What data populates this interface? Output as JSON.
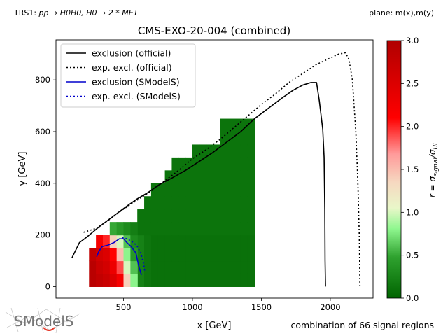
{
  "header": {
    "process_prefix": "TRS1: ",
    "process": "pp → H0H0, H0 → 2 * MET",
    "plane": "plane: m(x),m(y)"
  },
  "footer": {
    "combination": "combination of 66 signal regions",
    "logo_text": "SModelS"
  },
  "chart_data": {
    "type": "heatmap",
    "title": "CMS-EXO-20-004 (combined)",
    "xlabel": "x [GeV]",
    "ylabel": "y [GeV]",
    "xlim": [
      10,
      2310
    ],
    "ylim": [
      -45,
      955
    ],
    "xticks": [
      500,
      1000,
      1500,
      2000
    ],
    "yticks": [
      0,
      200,
      400,
      600,
      800
    ],
    "legend_position": "upper left",
    "colorbar": {
      "label": "r = σ_signal/σ_UL",
      "range": [
        0.0,
        3.0
      ],
      "ticks": [
        "0.0",
        "0.5",
        "1.0",
        "1.5",
        "2.0",
        "2.5",
        "3.0"
      ],
      "colors": [
        "#006400",
        "#8ff78f",
        "#f6eec8",
        "#ff0000",
        "#b00000"
      ]
    },
    "grid": {
      "x_step": 25,
      "y_step": 25,
      "fill_region": {
        "x_range": [
          600,
          1450
        ],
        "y_max_boundary": [
          [
            575,
            275
          ],
          [
            650,
            325
          ],
          [
            725,
            375
          ],
          [
            800,
            425
          ],
          [
            875,
            475
          ],
          [
            1025,
            550
          ],
          [
            1225,
            650
          ],
          [
            1450,
            650
          ]
        ]
      },
      "low_mass_r": {
        "x_centers": [
          275,
          325,
          375,
          425,
          475,
          525,
          575
        ],
        "y_rows": [
          {
            "y": 25,
            "r": [
              2.9,
              2.8,
              2.7,
              2.5,
              2.2,
              1.4,
              0.8
            ]
          },
          {
            "y": 75,
            "r": [
              2.9,
              2.7,
              2.6,
              2.3,
              1.9,
              1.0,
              0.6
            ]
          },
          {
            "y": 125,
            "r": [
              2.8,
              2.6,
              2.5,
              2.1,
              1.5,
              0.8,
              0.4
            ]
          },
          {
            "y": 175,
            "r": [
              null,
              2.2,
              2.0,
              1.4,
              1.0,
              0.6,
              0.3
            ]
          },
          {
            "y": 225,
            "r": [
              null,
              null,
              null,
              0.5,
              0.4,
              0.3,
              0.2
            ]
          }
        ]
      }
    },
    "series": [
      {
        "name": "exclusion (official)",
        "color": "#000000",
        "dash": "solid",
        "points": [
          [
            125,
            110
          ],
          [
            180,
            170
          ],
          [
            230,
            190
          ],
          [
            320,
            230
          ],
          [
            420,
            270
          ],
          [
            520,
            310
          ],
          [
            600,
            340
          ],
          [
            680,
            365
          ],
          [
            760,
            395
          ],
          [
            850,
            420
          ],
          [
            950,
            450
          ],
          [
            1050,
            485
          ],
          [
            1150,
            520
          ],
          [
            1250,
            560
          ],
          [
            1350,
            600
          ],
          [
            1450,
            650
          ],
          [
            1550,
            690
          ],
          [
            1650,
            730
          ],
          [
            1730,
            760
          ],
          [
            1800,
            780
          ],
          [
            1860,
            790
          ],
          [
            1900,
            790
          ],
          [
            1920,
            720
          ],
          [
            1945,
            610
          ],
          [
            1955,
            500
          ],
          [
            1960,
            300
          ],
          [
            1962,
            100
          ],
          [
            1965,
            0
          ]
        ]
      },
      {
        "name": "exp. excl. (official)",
        "color": "#000000",
        "dash": "dotted",
        "points": [
          [
            210,
            210
          ],
          [
            300,
            225
          ],
          [
            400,
            260
          ],
          [
            500,
            300
          ],
          [
            600,
            335
          ],
          [
            700,
            370
          ],
          [
            800,
            410
          ],
          [
            900,
            450
          ],
          [
            1000,
            495
          ],
          [
            1100,
            530
          ],
          [
            1200,
            570
          ],
          [
            1300,
            615
          ],
          [
            1400,
            660
          ],
          [
            1500,
            705
          ],
          [
            1600,
            745
          ],
          [
            1700,
            790
          ],
          [
            1800,
            825
          ],
          [
            1900,
            860
          ],
          [
            2000,
            885
          ],
          [
            2060,
            900
          ],
          [
            2110,
            905
          ],
          [
            2135,
            880
          ],
          [
            2160,
            800
          ],
          [
            2185,
            600
          ],
          [
            2200,
            400
          ],
          [
            2210,
            200
          ],
          [
            2215,
            0
          ]
        ]
      },
      {
        "name": "exclusion (SModelS)",
        "color": "#0000cc",
        "dash": "solid",
        "points": [
          [
            305,
            115
          ],
          [
            320,
            135
          ],
          [
            345,
            155
          ],
          [
            385,
            160
          ],
          [
            430,
            170
          ],
          [
            470,
            185
          ],
          [
            500,
            185
          ],
          [
            525,
            170
          ],
          [
            555,
            155
          ],
          [
            590,
            130
          ],
          [
            610,
            80
          ],
          [
            630,
            45
          ]
        ]
      },
      {
        "name": "exp. excl. (SModelS)",
        "color": "#0000cc",
        "dash": "dotted",
        "points": [
          [
            490,
            190
          ],
          [
            525,
            185
          ],
          [
            560,
            175
          ],
          [
            595,
            160
          ],
          [
            625,
            130
          ],
          [
            645,
            90
          ],
          [
            655,
            55
          ]
        ]
      }
    ]
  }
}
